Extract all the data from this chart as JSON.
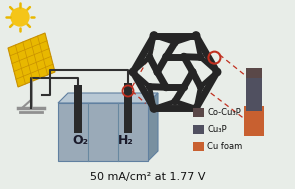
{
  "bg_color": "#e8ede8",
  "title_text": "50 mA/cm² at 1.77 V",
  "legend_items": [
    {
      "label": "Co-Cu₃P",
      "color": "#5a4a4a"
    },
    {
      "label": "Cu₃P",
      "color": "#556070"
    },
    {
      "label": "Cu foam",
      "color": "#d4724a"
    }
  ],
  "o2_label": "O₂",
  "h2_label": "H₂",
  "sun_color": "#f5c518",
  "sun_ray_color": "#e8b800",
  "solar_panel_color": "#e8b800",
  "solar_panel_grid": "#c89000",
  "solar_panel_dot": "#ffffff",
  "electrolyte_front": "#9aaab8",
  "electrolyte_top": "#b8c8d4",
  "electrolyte_right": "#7890a0",
  "electrolyte_edge": "#6080a0",
  "electrode_dark": "#2a2a2a",
  "electrode_gray": "#505060",
  "wire_color": "#303030",
  "dashed_line_color": "#c03020",
  "circle_color": "#c03020",
  "molecule_color": "#252525",
  "foam_dark": "#5a4848",
  "foam_gray": "#505060",
  "foam_orange": "#c86030",
  "stand_color": "#909090",
  "cell_divider": "#6888a0",
  "o2_color": "#1a1a2a",
  "h2_color": "#1a1a2a"
}
